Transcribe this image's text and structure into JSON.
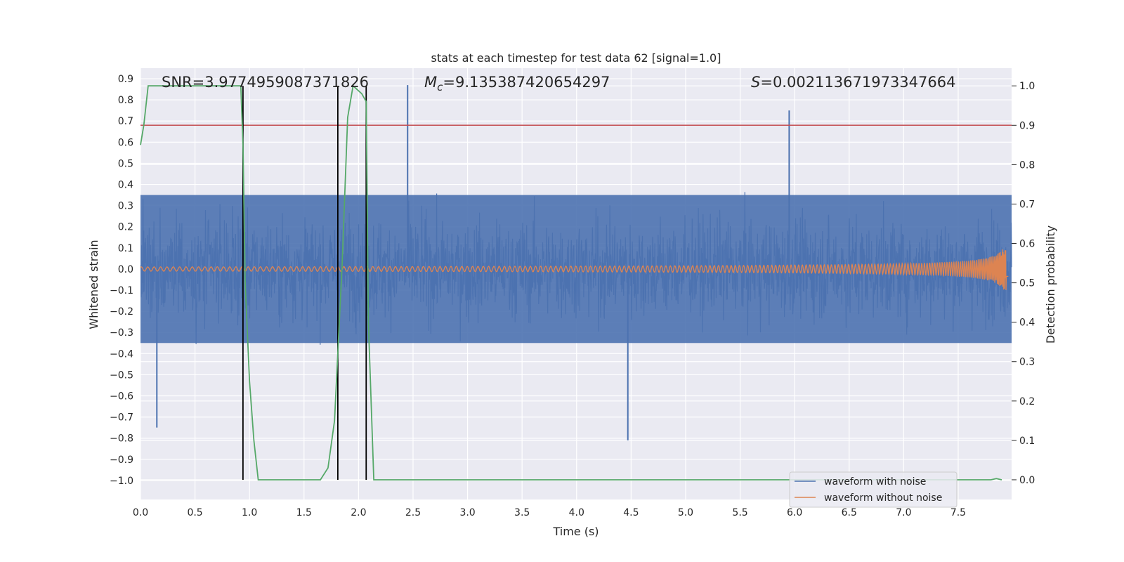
{
  "chart_data": {
    "type": "line",
    "title": "stats at each timestep for test data 62 [signal=1.0]",
    "xlabel": "Time (s)",
    "ylabel": "Whitened strain",
    "y2label": "Detection probability",
    "xlim": [
      0.0,
      7.99
    ],
    "ylim": [
      -1.09,
      0.95
    ],
    "y2lim": [
      -0.05,
      1.045
    ],
    "xticks": [
      "0.0",
      "0.5",
      "1.0",
      "1.5",
      "2.0",
      "2.5",
      "3.0",
      "3.5",
      "4.0",
      "4.5",
      "5.0",
      "5.5",
      "6.0",
      "6.5",
      "7.0",
      "7.5"
    ],
    "xtick_values": [
      0.0,
      0.5,
      1.0,
      1.5,
      2.0,
      2.5,
      3.0,
      3.5,
      4.0,
      4.5,
      5.0,
      5.5,
      6.0,
      6.5,
      7.0,
      7.5
    ],
    "yticks": [
      "0.9",
      "0.8",
      "0.7",
      "0.6",
      "0.5",
      "0.4",
      "0.3",
      "0.2",
      "0.1",
      "0.0",
      "−0.1",
      "−0.2",
      "−0.3",
      "−0.4",
      "−0.5",
      "−0.6",
      "−0.7",
      "−0.8",
      "−0.9",
      "−1.0"
    ],
    "ytick_values": [
      0.9,
      0.8,
      0.7,
      0.6,
      0.5,
      0.4,
      0.3,
      0.2,
      0.1,
      0.0,
      -0.1,
      -0.2,
      -0.3,
      -0.4,
      -0.5,
      -0.6,
      -0.7,
      -0.8,
      -0.9,
      -1.0
    ],
    "y2ticks": [
      "1.0",
      "0.9",
      "0.8",
      "0.7",
      "0.6",
      "0.5",
      "0.4",
      "0.3",
      "0.2",
      "0.1",
      "0.0"
    ],
    "y2tick_values": [
      1.0,
      0.9,
      0.8,
      0.7,
      0.6,
      0.5,
      0.4,
      0.3,
      0.2,
      0.1,
      0.0
    ],
    "annotations": {
      "snr": "SNR=3.9774959087371826",
      "mc_symbol": "M",
      "mc_sub": "c",
      "mc_value": "=9.135387420654297",
      "s_symbol": "S",
      "s_value": "=0.002113671973347664"
    },
    "threshold": {
      "y2": 0.9,
      "color": "#c44e52"
    },
    "vlines_x": [
      0.94,
      1.81,
      2.07
    ],
    "series": [
      {
        "name": "waveform with noise",
        "color": "#4c72b0",
        "envelope": 0.35,
        "peaks_x": [
          2.45,
          5.95,
          4.47,
          0.15
        ],
        "peaks_y": [
          0.87,
          0.75,
          -0.81,
          -0.75
        ]
      },
      {
        "name": "waveform without noise",
        "color": "#dd8452",
        "chirp_end_amplitude": 0.1
      },
      {
        "name": "detection probability",
        "color": "#55a868",
        "x": [
          0.0,
          0.03,
          0.07,
          0.15,
          0.5,
          0.92,
          0.94,
          0.96,
          1.0,
          1.04,
          1.08,
          1.5,
          1.65,
          1.72,
          1.78,
          1.85,
          1.9,
          1.95,
          2.03,
          2.07,
          2.09,
          2.14,
          5.0,
          7.8,
          7.85,
          7.9
        ],
        "y": [
          0.85,
          0.9,
          1.0,
          1.0,
          1.0,
          1.0,
          0.85,
          0.5,
          0.25,
          0.1,
          0.0,
          0.0,
          0.0,
          0.03,
          0.15,
          0.55,
          0.92,
          1.0,
          0.98,
          0.96,
          0.4,
          0.0,
          0.0,
          0.0,
          0.003,
          0.0
        ]
      }
    ],
    "legend": {
      "location": "lower right",
      "entries": [
        "waveform with noise",
        "waveform without noise"
      ]
    },
    "colors": {
      "background": "#eaeaf2",
      "grid": "#ffffff",
      "vline": "#000000"
    }
  }
}
